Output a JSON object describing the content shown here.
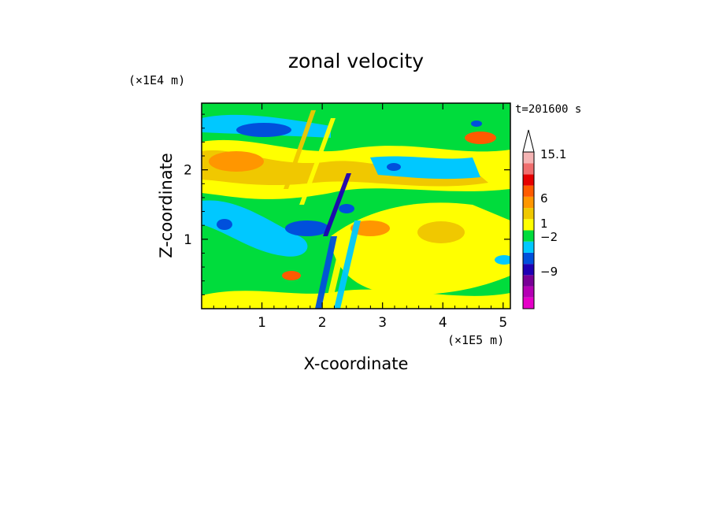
{
  "chart_data": {
    "type": "heatmap",
    "title": "zonal velocity",
    "xlabel": "X-coordinate",
    "ylabel": "Z-coordinate",
    "x_scale_label": "(×1E5 m)",
    "y_scale_label": "(×1E4 m)",
    "time_label": "t=201600 s",
    "xlim": [
      0,
      5.12
    ],
    "ylim": [
      0,
      2.96
    ],
    "x_ticks": [
      1,
      2,
      3,
      4,
      5
    ],
    "y_ticks": [
      1,
      2
    ],
    "colorbar": {
      "levels": [
        {
          "color": "#e600c8"
        },
        {
          "color": "#b400b4"
        },
        {
          "color": "#780096"
        },
        {
          "color": "#1e00b4"
        },
        {
          "color": "#0050dc"
        },
        {
          "color": "#00c8ff"
        },
        {
          "color": "#00dc3c"
        },
        {
          "color": "#ffff00"
        },
        {
          "color": "#f0c800"
        },
        {
          "color": "#ff9600"
        },
        {
          "color": "#ff5a00"
        },
        {
          "color": "#e60000"
        },
        {
          "color": "#f06e6e"
        },
        {
          "color": "#f5b4b4"
        }
      ],
      "labels": [
        "15.1",
        "6",
        "1",
        "−2",
        "−9"
      ]
    },
    "features": [
      {
        "x": 0.7,
        "z": 2.6,
        "value": "negative"
      },
      {
        "x": 1.2,
        "z": 1.2,
        "value": "negative"
      },
      {
        "x": 2.35,
        "z": 0.6,
        "value": "negative"
      },
      {
        "x": 1.3,
        "z": 2.2,
        "value": "positive"
      },
      {
        "x": 4.5,
        "z": 2.5,
        "value": "positive"
      },
      {
        "x": 3.6,
        "z": 1.3,
        "value": "positive"
      }
    ]
  }
}
